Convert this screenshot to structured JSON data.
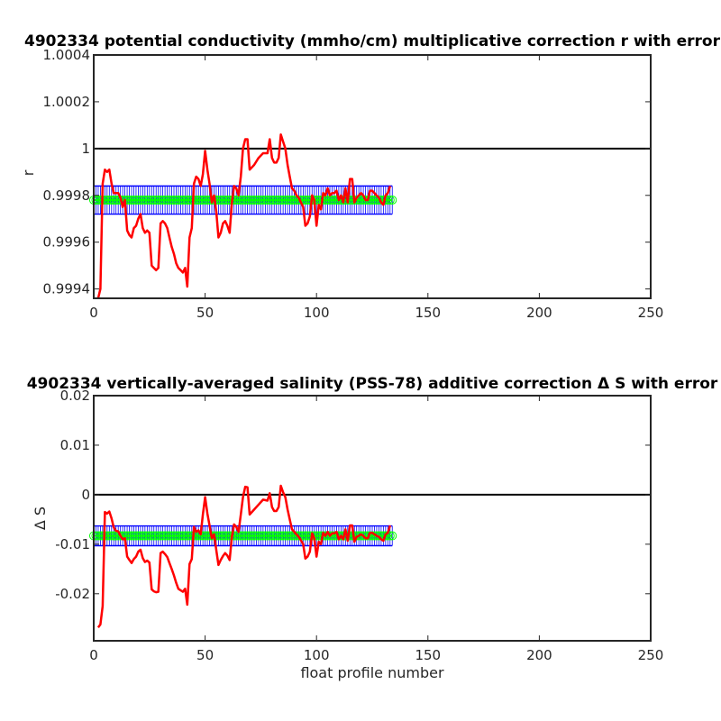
{
  "chart_data": [
    {
      "type": "line",
      "title": "4902334 potential conductivity (mmho/cm) multiplicative correction r with error",
      "xlabel": "",
      "ylabel": "r",
      "xlim": [
        0,
        250
      ],
      "ylim": [
        0.99936,
        1.0004
      ],
      "xticks": [
        0,
        50,
        100,
        150,
        200,
        250
      ],
      "xtick_labels": [
        "0",
        "50",
        "100",
        "150",
        "200",
        "250"
      ],
      "yticks": [
        0.9994,
        0.9996,
        0.9998,
        1.0,
        1.0002,
        1.0004
      ],
      "ytick_labels": [
        "0.9994",
        "0.9996",
        "0.9998",
        "1",
        "1.0002",
        "1.0004"
      ],
      "reference_line": 1.0,
      "fit_x_range": [
        0,
        134
      ],
      "fit_value": 0.99978,
      "fit_error_band": [
        0.99972,
        0.99984
      ],
      "series": [
        {
          "color": "#ff0000",
          "x": [
            2,
            3,
            4,
            5,
            6,
            7,
            8,
            9,
            10,
            11,
            12,
            13,
            14,
            15,
            16,
            17,
            18,
            19,
            20,
            21,
            22,
            23,
            24,
            25,
            26,
            27,
            28,
            29,
            30,
            31,
            32,
            33,
            34,
            35,
            36,
            37,
            38,
            39,
            40,
            41,
            42,
            43,
            44,
            45,
            46,
            47,
            48,
            49,
            50,
            51,
            52,
            53,
            54,
            55,
            56,
            57,
            58,
            59,
            60,
            61,
            62,
            63,
            64,
            65,
            66,
            67,
            68,
            69,
            70,
            72,
            74,
            76,
            78,
            79,
            80,
            81,
            82,
            83,
            84,
            85,
            86,
            87,
            88,
            89,
            90,
            91,
            92,
            93,
            94,
            95,
            96,
            97,
            98,
            99,
            100,
            101,
            102,
            103,
            104,
            105,
            106,
            107,
            108,
            109,
            110,
            111,
            112,
            113,
            114,
            115,
            116,
            117,
            118,
            119,
            120,
            121,
            122,
            123,
            124,
            125,
            126,
            127,
            128,
            129,
            130,
            131,
            132,
            133
          ],
          "y": [
            0.99936,
            0.9994,
            0.99985,
            0.99991,
            0.9999,
            0.99991,
            0.99985,
            0.99981,
            0.99981,
            0.99981,
            0.99979,
            0.99975,
            0.99978,
            0.99965,
            0.99963,
            0.99962,
            0.99966,
            0.99967,
            0.9997,
            0.99972,
            0.99966,
            0.99964,
            0.99965,
            0.99964,
            0.9995,
            0.99949,
            0.99948,
            0.99949,
            0.99968,
            0.99969,
            0.99968,
            0.99966,
            0.99962,
            0.99958,
            0.99955,
            0.99951,
            0.99949,
            0.99948,
            0.99947,
            0.99949,
            0.99941,
            0.99962,
            0.99966,
            0.99985,
            0.99988,
            0.99987,
            0.99984,
            0.99989,
            0.99999,
            0.99991,
            0.99985,
            0.99977,
            0.9998,
            0.99973,
            0.99962,
            0.99964,
            0.99968,
            0.99969,
            0.99967,
            0.99964,
            0.99977,
            0.99984,
            0.99983,
            0.9998,
            0.99988,
            1.0,
            1.00004,
            1.00004,
            0.99991,
            0.99993,
            0.99996,
            0.99998,
            0.99998,
            1.00004,
            0.99996,
            0.99994,
            0.99994,
            0.99996,
            1.00006,
            1.00003,
            1.0,
            0.99993,
            0.99988,
            0.99983,
            0.99982,
            0.9998,
            0.99979,
            0.99977,
            0.99975,
            0.99967,
            0.99968,
            0.99971,
            0.9998,
            0.99978,
            0.99967,
            0.99976,
            0.99974,
            0.99981,
            0.9998,
            0.99983,
            0.9998,
            0.99981,
            0.99981,
            0.99982,
            0.99978,
            0.9998,
            0.99977,
            0.99983,
            0.99977,
            0.99987,
            0.99987,
            0.99977,
            0.99979,
            0.9998,
            0.99981,
            0.9998,
            0.99978,
            0.99978,
            0.99982,
            0.99982,
            0.99981,
            0.9998,
            0.99979,
            0.99977,
            0.99976,
            0.9998,
            0.99981,
            0.99984
          ]
        }
      ]
    },
    {
      "type": "line",
      "title": "4902334 vertically-averaged salinity (PSS-78) additive correction Δ S with error",
      "xlabel": "float profile number",
      "ylabel": "Δ S",
      "xlim": [
        0,
        250
      ],
      "ylim": [
        -0.0295,
        0.02
      ],
      "xticks": [
        0,
        50,
        100,
        150,
        200,
        250
      ],
      "xtick_labels": [
        "0",
        "50",
        "100",
        "150",
        "200",
        "250"
      ],
      "yticks": [
        -0.02,
        -0.01,
        0,
        0.01,
        0.02
      ],
      "ytick_labels": [
        "-0.02",
        "-0.01",
        "0",
        "0.01",
        "0.02"
      ],
      "reference_line": 0,
      "fit_x_range": [
        0,
        134
      ],
      "fit_value": -0.0083,
      "fit_error_band": [
        -0.0103,
        -0.0063
      ],
      "series": [
        {
          "color": "#ff0000",
          "x": [
            2,
            3,
            4,
            5,
            6,
            7,
            8,
            9,
            10,
            11,
            12,
            13,
            14,
            15,
            16,
            17,
            18,
            19,
            20,
            21,
            22,
            23,
            24,
            25,
            26,
            27,
            28,
            29,
            30,
            31,
            32,
            33,
            34,
            35,
            36,
            37,
            38,
            39,
            40,
            41,
            42,
            43,
            44,
            45,
            46,
            47,
            48,
            49,
            50,
            51,
            52,
            53,
            54,
            55,
            56,
            57,
            58,
            59,
            60,
            61,
            62,
            63,
            64,
            65,
            66,
            67,
            68,
            69,
            70,
            72,
            74,
            76,
            78,
            79,
            80,
            81,
            82,
            83,
            84,
            85,
            86,
            87,
            88,
            89,
            90,
            91,
            92,
            93,
            94,
            95,
            96,
            97,
            98,
            99,
            100,
            101,
            102,
            103,
            104,
            105,
            106,
            107,
            108,
            109,
            110,
            111,
            112,
            113,
            114,
            115,
            116,
            117,
            118,
            119,
            120,
            121,
            122,
            123,
            124,
            125,
            126,
            127,
            128,
            129,
            130,
            131,
            132,
            133
          ],
          "y": [
            -0.0268,
            -0.0262,
            -0.0225,
            -0.0035,
            -0.0038,
            -0.0034,
            -0.0048,
            -0.0066,
            -0.0073,
            -0.0074,
            -0.0083,
            -0.009,
            -0.0088,
            -0.0125,
            -0.0132,
            -0.0138,
            -0.013,
            -0.0125,
            -0.0115,
            -0.0111,
            -0.0128,
            -0.0136,
            -0.0133,
            -0.0137,
            -0.0191,
            -0.0195,
            -0.0197,
            -0.0196,
            -0.0118,
            -0.0115,
            -0.012,
            -0.0126,
            -0.0138,
            -0.015,
            -0.0163,
            -0.0178,
            -0.019,
            -0.0193,
            -0.0196,
            -0.019,
            -0.0222,
            -0.014,
            -0.013,
            -0.0065,
            -0.0075,
            -0.0072,
            -0.008,
            -0.004,
            -0.0005,
            -0.0038,
            -0.0062,
            -0.0088,
            -0.008,
            -0.0112,
            -0.0142,
            -0.0132,
            -0.0124,
            -0.0118,
            -0.0123,
            -0.0132,
            -0.0085,
            -0.006,
            -0.0065,
            -0.0075,
            -0.004,
            -0.0005,
            0.0016,
            0.0015,
            -0.004,
            -0.003,
            -0.002,
            -0.001,
            -0.0012,
            0.0003,
            -0.0025,
            -0.0033,
            -0.0033,
            -0.0025,
            0.0018,
            0.0005,
            -0.0005,
            -0.003,
            -0.005,
            -0.007,
            -0.0075,
            -0.008,
            -0.0085,
            -0.0092,
            -0.01,
            -0.0129,
            -0.0125,
            -0.0115,
            -0.0078,
            -0.0088,
            -0.0125,
            -0.0095,
            -0.01,
            -0.0077,
            -0.0083,
            -0.0075,
            -0.0083,
            -0.0078,
            -0.0078,
            -0.0075,
            -0.009,
            -0.0083,
            -0.009,
            -0.007,
            -0.0093,
            -0.0062,
            -0.0062,
            -0.0095,
            -0.0085,
            -0.0083,
            -0.008,
            -0.0083,
            -0.0088,
            -0.0088,
            -0.0077,
            -0.0077,
            -0.008,
            -0.0083,
            -0.0085,
            -0.009,
            -0.0093,
            -0.008,
            -0.0077,
            -0.0062
          ]
        }
      ]
    }
  ]
}
